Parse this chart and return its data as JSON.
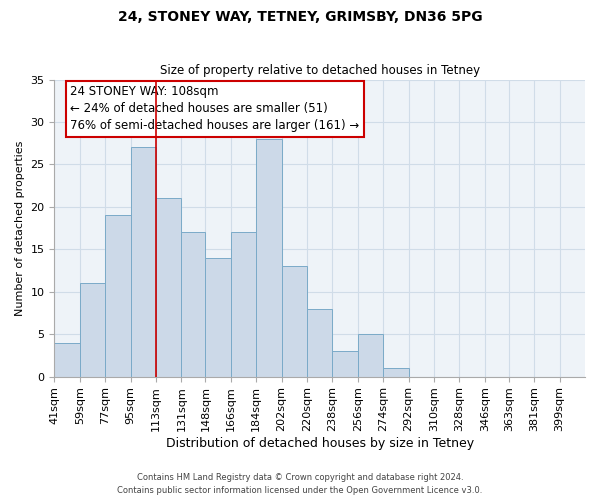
{
  "title": "24, STONEY WAY, TETNEY, GRIMSBY, DN36 5PG",
  "subtitle": "Size of property relative to detached houses in Tetney",
  "xlabel": "Distribution of detached houses by size in Tetney",
  "ylabel": "Number of detached properties",
  "bar_color": "#ccd9e8",
  "bar_edge_color": "#7aaac8",
  "marker_line_color": "#cc0000",
  "categories": [
    "41sqm",
    "59sqm",
    "77sqm",
    "95sqm",
    "113sqm",
    "131sqm",
    "148sqm",
    "166sqm",
    "184sqm",
    "202sqm",
    "220sqm",
    "238sqm",
    "256sqm",
    "274sqm",
    "292sqm",
    "310sqm",
    "328sqm",
    "346sqm",
    "363sqm",
    "381sqm",
    "399sqm"
  ],
  "values": [
    4,
    11,
    19,
    27,
    21,
    17,
    14,
    17,
    28,
    13,
    8,
    3,
    5,
    1,
    0,
    0,
    0,
    0,
    0,
    0,
    0
  ],
  "ylim": [
    0,
    35
  ],
  "yticks": [
    0,
    5,
    10,
    15,
    20,
    25,
    30,
    35
  ],
  "annotation_title": "24 STONEY WAY: 108sqm",
  "annotation_line1": "← 24% of detached houses are smaller (51)",
  "annotation_line2": "76% of semi-detached houses are larger (161) →",
  "footer1": "Contains HM Land Registry data © Crown copyright and database right 2024.",
  "footer2": "Contains public sector information licensed under the Open Government Licence v3.0.",
  "bin_edges": [
    41,
    59,
    77,
    95,
    113,
    131,
    148,
    166,
    184,
    202,
    220,
    238,
    256,
    274,
    292,
    310,
    328,
    346,
    363,
    381,
    399
  ],
  "marker_bin_index": 4,
  "grid_color": "#d0dce8",
  "background_color": "#eef3f8"
}
